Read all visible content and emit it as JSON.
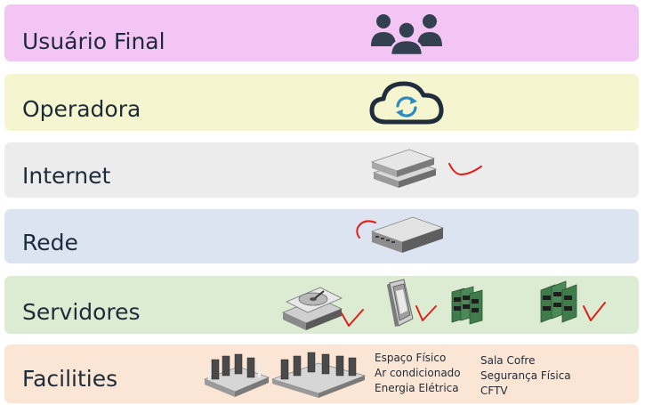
{
  "layers": [
    {
      "label": "Usuário Final"
    },
    {
      "label": "Operadora"
    },
    {
      "label": "Internet"
    },
    {
      "label": "Rede"
    },
    {
      "label": "Servidores"
    },
    {
      "label": "Facilities"
    }
  ],
  "facilities_notes": {
    "column1": [
      "Espaço Físico",
      "Ar condicionado",
      "Energia Elétrica"
    ],
    "column2": [
      "Sala Cofre",
      "Segurança Física",
      "CFTV"
    ]
  },
  "icons": {
    "usuario_final": "users-group-icon",
    "operadora": "cloud-sync-icon",
    "internet": "network-device-icon",
    "rede": "rack-switch-icon",
    "servidores": [
      "hard-drive-icon",
      "processor-chip-icon",
      "ram-modules-icon",
      "ram-modules-icon"
    ],
    "facilities": [
      "datacenter-room-icon",
      "datacenter-room-icon"
    ]
  },
  "colors": {
    "usuario_final": "#f2c5f5",
    "operadora": "#f5f6cf",
    "internet": "#ececec",
    "rede": "#dbe4f0",
    "servidores": "#dcecd2",
    "facilities": "#fbe6d5",
    "annotation": "#e0201c",
    "text": "#1d2b3a"
  }
}
